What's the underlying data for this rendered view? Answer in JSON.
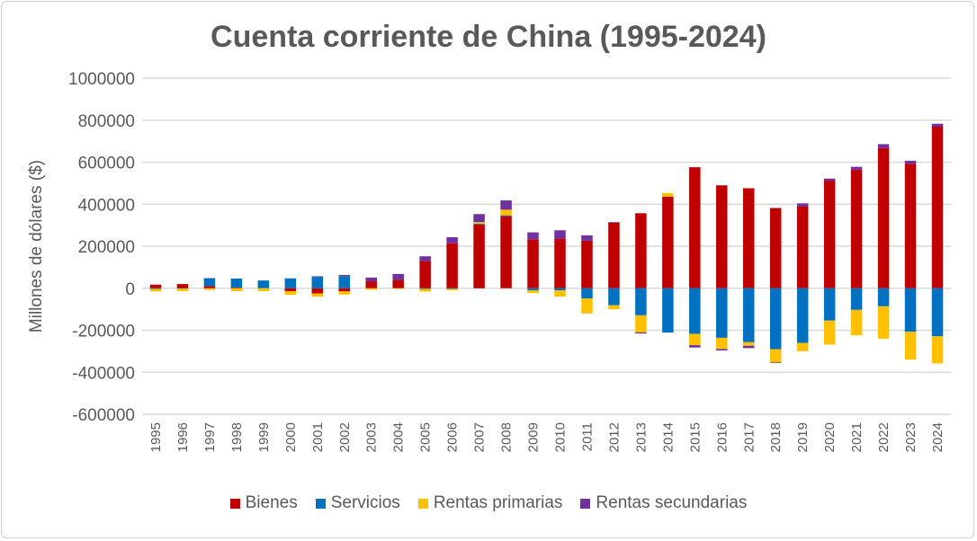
{
  "chart_data": {
    "type": "bar",
    "stacked": true,
    "title": "Cuenta corriente de China (1995-2024)",
    "xlabel": "",
    "ylabel": "Millones de dólares ($)",
    "ylim": [
      -600000,
      1000000
    ],
    "yticks": [
      -600000,
      -400000,
      -200000,
      0,
      200000,
      400000,
      600000,
      800000,
      1000000
    ],
    "ytick_labels": [
      "-600000",
      "-400000",
      "-200000",
      "0",
      "200000",
      "400000",
      "600000",
      "800000",
      "1000000"
    ],
    "grid": true,
    "legend_position": "bottom",
    "categories": [
      "1995",
      "1996",
      "1997",
      "1998",
      "1999",
      "2000",
      "2001",
      "2002",
      "2003",
      "2004",
      "2005",
      "2006",
      "2007",
      "2008",
      "2009",
      "2010",
      "2011",
      "2012",
      "2013",
      "2014",
      "2015",
      "2016",
      "2017",
      "2018",
      "2019",
      "2020",
      "2021",
      "2022",
      "2023",
      "2024"
    ],
    "series": [
      {
        "name": "Bienes",
        "color": "#C00000",
        "values": [
          17000,
          20000,
          10000,
          3000,
          0,
          -14000,
          -25000,
          -15000,
          33000,
          40000,
          129000,
          214000,
          304000,
          343000,
          233000,
          236000,
          226000,
          312000,
          357000,
          436000,
          576000,
          490000,
          476000,
          382000,
          390000,
          512000,
          564000,
          667000,
          593000,
          769000
        ]
      },
      {
        "name": "Servicios",
        "color": "#0070C0",
        "values": [
          -3000,
          -2000,
          36000,
          43000,
          37000,
          47000,
          54000,
          58000,
          0,
          0,
          -3000,
          -3000,
          3000,
          4000,
          -10000,
          -10000,
          -49000,
          -81000,
          -129000,
          -211000,
          -217000,
          -236000,
          -257000,
          -290000,
          -260000,
          -154000,
          -103000,
          -86000,
          -207000,
          -229000
        ]
      },
      {
        "name": "Rentas primarias",
        "color": "#FFC000",
        "values": [
          -12000,
          -12000,
          -8000,
          -14000,
          -14000,
          -17000,
          -15000,
          -15000,
          -7000,
          -3000,
          -13000,
          -6000,
          8000,
          27000,
          -13000,
          -30000,
          -71000,
          -19000,
          -81000,
          17000,
          -54000,
          -53000,
          -17000,
          -63000,
          -40000,
          -114000,
          -121000,
          -154000,
          -133000,
          -129000
        ]
      },
      {
        "name": "Rentas secundarias",
        "color": "#7030A0",
        "values": [
          0,
          0,
          2000,
          0,
          0,
          0,
          3000,
          5000,
          18000,
          28000,
          23000,
          29000,
          38000,
          44000,
          33000,
          40000,
          26000,
          3000,
          -5000,
          0,
          -11000,
          -7000,
          -11000,
          -3000,
          14000,
          10000,
          14000,
          19000,
          14000,
          14000
        ]
      }
    ]
  }
}
